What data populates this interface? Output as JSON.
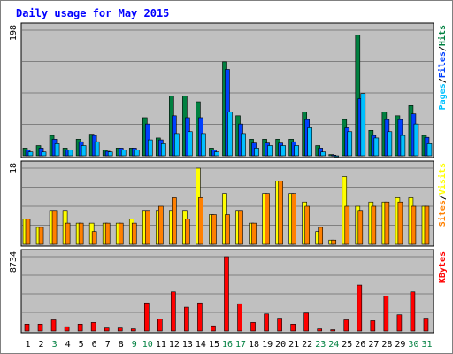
{
  "chart_data": {
    "type": "bar",
    "title": "Daily usage for May 2015",
    "categories": [
      "1",
      "2",
      "3",
      "4",
      "5",
      "6",
      "7",
      "8",
      "9",
      "10",
      "11",
      "12",
      "13",
      "14",
      "15",
      "16",
      "17",
      "18",
      "19",
      "20",
      "21",
      "22",
      "23",
      "24",
      "25",
      "26",
      "27",
      "28",
      "29",
      "30",
      "31"
    ],
    "weekend_days": [
      "3",
      "9",
      "10",
      "16",
      "17",
      "23",
      "24",
      "30",
      "31"
    ],
    "panels": [
      {
        "name": "hits-files-pages",
        "scale_label": "198",
        "ymax": 198,
        "legend": [
          {
            "text": "Pages",
            "color": "#00c0ff"
          },
          {
            "text": "/",
            "color": "#000000"
          },
          {
            "text": "Files",
            "color": "#0040ff"
          },
          {
            "text": "/",
            "color": "#000000"
          },
          {
            "text": "Hits",
            "color": "#008040"
          }
        ],
        "series": [
          {
            "name": "Hits",
            "color": "#008040",
            "values": [
              12,
              16,
              32,
              12,
              26,
              34,
              9,
              12,
              12,
              60,
              28,
              94,
              94,
              85,
              12,
              148,
              63,
              26,
              26,
              26,
              26,
              69,
              16,
              2,
              57,
              190,
              40,
              69,
              63,
              79,
              32
            ]
          },
          {
            "name": "Files",
            "color": "#0040ff",
            "values": [
              9,
              12,
              26,
              9,
              22,
              32,
              7,
              12,
              12,
              50,
              25,
              63,
              60,
              60,
              9,
              136,
              50,
              20,
              20,
              20,
              22,
              57,
              12,
              1,
              44,
              90,
              32,
              57,
              57,
              66,
              29
            ]
          },
          {
            "name": "Pages",
            "color": "#00c0ff",
            "values": [
              6,
              6,
              19,
              9,
              16,
              22,
              6,
              9,
              9,
              25,
              19,
              35,
              38,
              35,
              6,
              69,
              35,
              12,
              16,
              16,
              16,
              44,
              6,
              0,
              38,
              98,
              28,
              38,
              32,
              50,
              19
            ]
          }
        ]
      },
      {
        "name": "visits-sites",
        "scale_label": "18",
        "ymax": 18,
        "legend": [
          {
            "text": "Sites",
            "color": "#ff8000"
          },
          {
            "text": "/",
            "color": "#000000"
          },
          {
            "text": "Visits",
            "color": "#ffff00"
          }
        ],
        "series": [
          {
            "name": "Visits",
            "color": "#ffff00",
            "values": [
              6,
              4,
              8,
              8,
              5,
              5,
              5,
              5,
              6,
              8,
              8,
              8,
              8,
              18,
              7,
              12,
              8,
              5,
              12,
              15,
              12,
              10,
              3,
              1,
              16,
              9,
              10,
              10,
              11,
              11,
              9
            ]
          },
          {
            "name": "Sites",
            "color": "#ff8000",
            "values": [
              6,
              4,
              8,
              5,
              5,
              3,
              5,
              5,
              5,
              8,
              9,
              11,
              6,
              11,
              7,
              7,
              8,
              5,
              12,
              15,
              12,
              9,
              4,
              1,
              9,
              8,
              9,
              10,
              10,
              9,
              9
            ]
          }
        ]
      },
      {
        "name": "kbytes",
        "scale_label": "8734",
        "ymax": 8734,
        "legend": [
          {
            "text": "KBytes",
            "color": "#ff0000"
          }
        ],
        "series": [
          {
            "name": "KBytes",
            "color": "#ff0000",
            "values": [
              800,
              800,
              1300,
              500,
              800,
              1000,
              350,
              350,
              250,
              3300,
              1400,
              4600,
              2800,
              3300,
              600,
              8734,
              3200,
              1000,
              2000,
              1500,
              800,
              2100,
              250,
              150,
              1300,
              5400,
              1200,
              4100,
              1900,
              4600,
              1500
            ]
          }
        ]
      }
    ]
  },
  "colors": {
    "plot_background": "#c0c0c0",
    "panel_border": "#000000",
    "gridline": "#808080",
    "title": "#0000ff",
    "weekday_label": "#000000",
    "weekend_label": "#008040",
    "page_border": "#808080"
  }
}
